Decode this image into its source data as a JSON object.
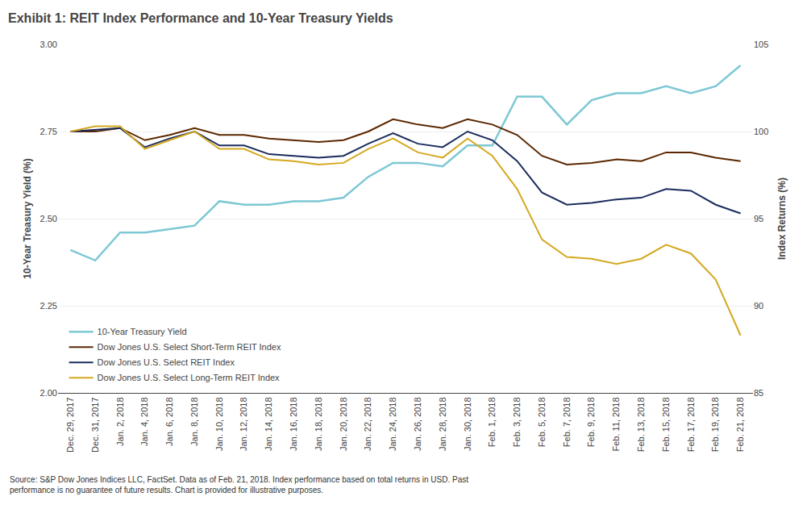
{
  "chart_data": {
    "type": "line",
    "title": "Exhibit 1: REIT Index Performance and 10-Year Treasury Yields",
    "ylabel": "10-Year Treasury Yield (%)",
    "y2label": "Index Returns (%)",
    "annotations": [
      "Source: S&P Dow Jones Indices LLC, FactSet. Data as of Feb. 21, 2018. Index performance based on total returns in USD. Past\nperformance is no guarantee of future results. Chart is provided for illustrative purposes."
    ],
    "categories": [
      "Dec. 29, 2017",
      "Dec. 31, 2017",
      "Jan. 2, 2018",
      "Jan. 4, 2018",
      "Jan. 6, 2018",
      "Jan. 8, 2018",
      "Jan. 10, 2018",
      "Jan. 12, 2018",
      "Jan. 14, 2018",
      "Jan. 16, 2018",
      "Jan. 18, 2018",
      "Jan. 20, 2018",
      "Jan. 22, 2018",
      "Jan. 24, 2018",
      "Jan. 26, 2018",
      "Jan. 28, 2018",
      "Jan. 30, 2018",
      "Feb. 1, 2018",
      "Feb. 3, 2018",
      "Feb. 5, 2018",
      "Feb. 7, 2018",
      "Feb. 9, 2018",
      "Feb. 11, 2018",
      "Feb. 13, 2018",
      "Feb. 15, 2018",
      "Feb. 17, 2018",
      "Feb. 19, 2018",
      "Feb. 21, 2018"
    ],
    "series": [
      {
        "name": "10-Year Treasury Yield",
        "color": "#7DC8D4",
        "values": [
          2.41,
          2.38,
          2.46,
          2.46,
          2.47,
          2.48,
          2.55,
          2.54,
          2.54,
          2.55,
          2.55,
          2.56,
          2.62,
          2.66,
          2.66,
          2.65,
          2.71,
          2.71,
          2.85,
          2.85,
          2.77,
          2.84,
          2.86,
          2.86,
          2.88,
          2.86,
          2.88,
          2.94
        ]
      },
      {
        "name": "Dow Jones U.S. Select Short-Term REIT Index",
        "color": "#5C2700",
        "axis": "y2",
        "values": [
          100.0,
          100.0,
          100.2,
          99.5,
          99.8,
          100.2,
          99.8,
          99.8,
          99.6,
          99.5,
          99.4,
          99.5,
          100.0,
          100.7,
          100.4,
          100.2,
          100.7,
          100.4,
          99.8,
          98.6,
          98.1,
          98.2,
          98.4,
          98.3,
          98.8,
          98.8,
          98.5,
          98.3
        ]
      },
      {
        "name": "Dow Jones U.S. Select REIT Index",
        "color": "#1B2D5E",
        "axis": "y2",
        "values": [
          100.0,
          100.1,
          100.2,
          99.1,
          99.6,
          100.0,
          99.2,
          99.2,
          98.7,
          98.6,
          98.5,
          98.6,
          99.3,
          99.9,
          99.3,
          99.1,
          100.0,
          99.5,
          98.3,
          96.5,
          95.8,
          95.9,
          96.1,
          96.2,
          96.7,
          96.6,
          95.8,
          95.3
        ]
      },
      {
        "name": "Dow Jones U.S. Select Long-Term REIT Index",
        "color": "#D4A820",
        "axis": "y2",
        "values": [
          100.0,
          100.3,
          100.3,
          99.0,
          99.5,
          100.0,
          99.0,
          99.0,
          98.4,
          98.3,
          98.1,
          98.2,
          99.0,
          99.6,
          98.8,
          98.5,
          99.6,
          98.6,
          96.7,
          93.8,
          92.8,
          92.7,
          92.4,
          92.7,
          93.5,
          93.0,
          91.5,
          88.3
        ]
      }
    ],
    "ylim": [
      2.0,
      3.0
    ],
    "yticks": [
      {
        "value": 2.0,
        "label": "2.00"
      },
      2.25,
      {
        "value": 2.5,
        "label": "2.50"
      },
      2.75,
      {
        "value": 3.0,
        "label": "3.00"
      }
    ],
    "y2lim": [
      85,
      105
    ],
    "y2ticks": [
      85,
      90,
      95,
      100,
      105
    ],
    "grid": true,
    "legend": "lower left"
  }
}
